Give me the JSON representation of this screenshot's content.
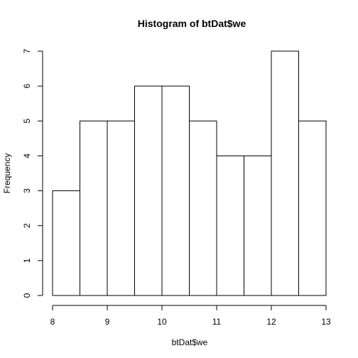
{
  "chart_data": {
    "type": "bar",
    "title": "Histogram of btDat$we",
    "xlabel": "btDat$we",
    "ylabel": "Frequency",
    "bins": [
      {
        "start": 8.0,
        "end": 8.5,
        "count": 3
      },
      {
        "start": 8.5,
        "end": 9.0,
        "count": 5
      },
      {
        "start": 9.0,
        "end": 9.5,
        "count": 5
      },
      {
        "start": 9.5,
        "end": 10.0,
        "count": 6
      },
      {
        "start": 10.0,
        "end": 10.5,
        "count": 6
      },
      {
        "start": 10.5,
        "end": 11.0,
        "count": 5
      },
      {
        "start": 11.0,
        "end": 11.5,
        "count": 4
      },
      {
        "start": 11.5,
        "end": 12.0,
        "count": 4
      },
      {
        "start": 12.0,
        "end": 12.5,
        "count": 7
      },
      {
        "start": 12.5,
        "end": 13.0,
        "count": 5
      }
    ],
    "xlim": [
      8,
      13
    ],
    "ylim": [
      0,
      7
    ],
    "x_ticks": [
      8,
      9,
      10,
      11,
      12,
      13
    ],
    "y_ticks": [
      0,
      1,
      2,
      3,
      4,
      5,
      6,
      7
    ],
    "grid": false,
    "legend": "none"
  }
}
